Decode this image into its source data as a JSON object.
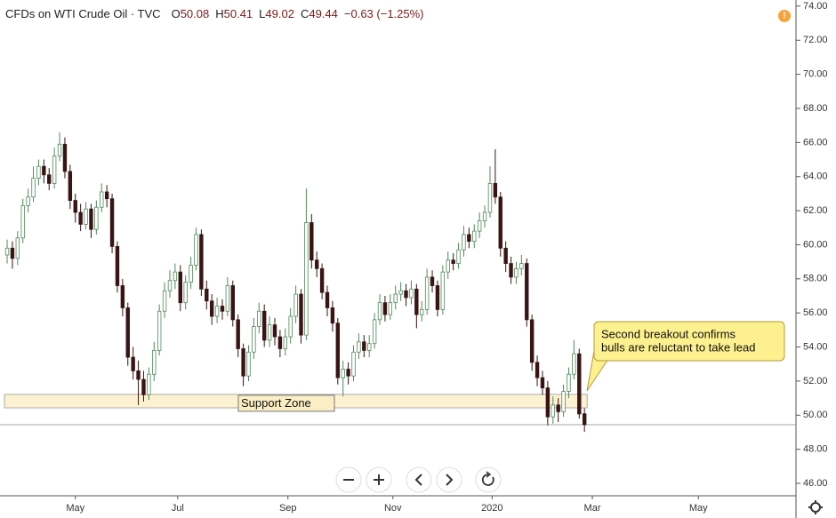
{
  "chart_data": {
    "type": "candlestick",
    "title": "CFDs on WTI Crude Oil · TVC",
    "ohlc_labels": [
      "O",
      "H",
      "L",
      "C"
    ],
    "change": "−0.63 (−1.25%)",
    "up_color": "#ffffff",
    "up_border": "#4f8a5b",
    "down_color": "#3a1414",
    "open": [
      59.4,
      59.8,
      59.2,
      60.4,
      62.3,
      62.8,
      63.9,
      64.6,
      64.1,
      63.6,
      65.2,
      65.9,
      64.3,
      62.6,
      61.9,
      61.2,
      62.1,
      60.9,
      62.2,
      63.1,
      62.7,
      59.9,
      57.6,
      56.3,
      53.4,
      52.6,
      52.1,
      51.2,
      52.4,
      53.8,
      56.1,
      57.3,
      57.9,
      58.4,
      56.6,
      57.8,
      58.8,
      60.6,
      57.4,
      56.7,
      55.8,
      56.4,
      56.1,
      57.6,
      55.6,
      53.9,
      52.3,
      53.7,
      55.2,
      56.1,
      54.4,
      55.3,
      54.6,
      53.9,
      54.6,
      55.8,
      57.1,
      54.7,
      61.3,
      59.1,
      58.6,
      57.2,
      56.3,
      55.4,
      52.2,
      52.7,
      52.3,
      53.7,
      54.3,
      53.8,
      54.2,
      55.6,
      56.6,
      55.9,
      56.6,
      57.1,
      57.3,
      56.9,
      57.4,
      55.9,
      56.2,
      58.1,
      57.6,
      56.2,
      58.4,
      59.1,
      58.9,
      59.7,
      60.6,
      60.2,
      60.8,
      61.4,
      61.9,
      63.6,
      62.8,
      59.8,
      58.9,
      58.1,
      58.6,
      58.9,
      55.6,
      53.1,
      52.2,
      51.6,
      49.9,
      50.6,
      50.2,
      51.4,
      52.4,
      53.6,
      50.08
    ],
    "high": [
      60.3,
      60.2,
      60.8,
      62.7,
      63.3,
      64.6,
      65.0,
      65.0,
      64.5,
      65.7,
      66.6,
      66.3,
      64.7,
      63.0,
      62.4,
      62.5,
      62.4,
      62.6,
      63.6,
      63.5,
      63.0,
      60.2,
      58.0,
      56.6,
      54.0,
      53.2,
      52.6,
      52.8,
      54.3,
      56.5,
      57.8,
      58.5,
      58.9,
      58.8,
      58.2,
      59.3,
      61.0,
      60.9,
      57.9,
      57.1,
      56.9,
      56.8,
      58.1,
      57.9,
      55.9,
      54.2,
      54.1,
      55.7,
      56.6,
      56.5,
      55.8,
      55.7,
      55.0,
      55.1,
      56.3,
      57.6,
      57.4,
      63.3,
      61.8,
      59.6,
      58.9,
      57.6,
      56.7,
      55.7,
      53.2,
      53.1,
      54.1,
      54.8,
      54.7,
      54.7,
      56.0,
      57.1,
      57.0,
      57.1,
      57.6,
      57.8,
      57.7,
      57.9,
      57.7,
      56.7,
      58.6,
      58.5,
      57.9,
      58.8,
      59.6,
      59.5,
      60.1,
      61.1,
      61.0,
      61.2,
      61.9,
      62.3,
      64.6,
      65.6,
      63.1,
      60.2,
      59.3,
      59.0,
      59.4,
      59.2,
      55.9,
      53.5,
      52.6,
      52.0,
      51.1,
      51.0,
      51.8,
      52.8,
      54.4,
      53.9,
      50.41
    ],
    "low": [
      58.9,
      58.6,
      58.8,
      60.1,
      61.9,
      62.5,
      63.5,
      63.6,
      63.2,
      63.3,
      64.9,
      63.9,
      62.1,
      61.3,
      60.8,
      60.9,
      60.4,
      60.6,
      61.9,
      62.2,
      59.5,
      57.2,
      55.8,
      52.9,
      52.1,
      50.6,
      50.8,
      50.9,
      52.0,
      53.5,
      55.7,
      56.9,
      57.4,
      56.1,
      56.2,
      57.4,
      58.5,
      57.0,
      56.2,
      55.3,
      55.4,
      55.6,
      55.8,
      55.2,
      53.4,
      51.7,
      52.0,
      53.3,
      54.8,
      54.0,
      54.0,
      54.1,
      53.4,
      53.5,
      54.2,
      55.4,
      54.2,
      54.4,
      58.6,
      58.1,
      56.8,
      55.8,
      54.9,
      51.8,
      51.1,
      51.8,
      52.0,
      53.3,
      53.4,
      53.4,
      53.9,
      55.3,
      55.5,
      55.6,
      56.2,
      56.7,
      56.4,
      56.5,
      55.1,
      55.5,
      55.9,
      57.2,
      55.8,
      55.9,
      58.0,
      58.5,
      58.6,
      59.3,
      59.8,
      59.8,
      60.4,
      61.0,
      61.6,
      62.4,
      59.3,
      58.4,
      57.7,
      57.7,
      58.2,
      55.2,
      52.6,
      51.7,
      51.2,
      49.4,
      49.5,
      49.6,
      49.9,
      51.0,
      52.1,
      49.8,
      49.02
    ],
    "close": [
      59.8,
      59.2,
      60.4,
      62.3,
      62.8,
      63.9,
      64.6,
      64.1,
      63.6,
      65.2,
      65.9,
      64.3,
      62.6,
      61.9,
      61.2,
      62.1,
      60.9,
      62.2,
      63.1,
      62.7,
      59.9,
      57.6,
      56.3,
      53.4,
      52.6,
      52.1,
      51.2,
      52.4,
      53.8,
      56.1,
      57.3,
      57.9,
      58.4,
      56.6,
      57.8,
      58.8,
      60.6,
      57.4,
      56.7,
      55.8,
      56.4,
      56.1,
      57.6,
      55.6,
      53.9,
      52.3,
      53.7,
      55.2,
      56.1,
      54.4,
      55.3,
      54.6,
      53.9,
      54.6,
      55.8,
      57.1,
      54.7,
      61.3,
      59.1,
      58.6,
      57.2,
      56.3,
      55.4,
      52.2,
      52.7,
      52.3,
      53.7,
      54.3,
      53.8,
      54.2,
      55.6,
      56.6,
      55.9,
      56.6,
      57.1,
      57.3,
      56.9,
      57.4,
      55.9,
      56.2,
      58.1,
      57.6,
      56.2,
      58.4,
      59.1,
      58.9,
      59.7,
      60.6,
      60.2,
      60.8,
      61.4,
      61.9,
      63.6,
      62.8,
      59.8,
      58.9,
      58.1,
      58.6,
      58.9,
      55.6,
      53.1,
      52.2,
      51.6,
      49.9,
      50.6,
      50.2,
      51.4,
      52.4,
      53.6,
      50.07,
      49.44
    ],
    "xlim": [
      -1.36,
      150.3
    ],
    "xticks": [
      {
        "value": 13,
        "label": "May"
      },
      {
        "value": 32.5,
        "label": "Jul"
      },
      {
        "value": 53.5,
        "label": "Sep"
      },
      {
        "value": 73.5,
        "label": "Nov"
      },
      {
        "value": 92.4,
        "label": "2020"
      },
      {
        "value": 111.5,
        "label": "Mar"
      },
      {
        "value": 131.7,
        "label": "May"
      }
    ],
    "ylim": [
      45.27,
      74.36
    ],
    "yticks": [
      {
        "value": 46,
        "label": "46.00"
      },
      {
        "value": 48,
        "label": "48.00"
      },
      {
        "value": 50,
        "label": "50.00"
      },
      {
        "value": 52,
        "label": "52.00"
      },
      {
        "value": 54,
        "label": "54.00"
      },
      {
        "value": 56,
        "label": "56.00"
      },
      {
        "value": 58,
        "label": "58.00"
      },
      {
        "value": 60,
        "label": "60.00"
      },
      {
        "value": 62,
        "label": "62.00"
      },
      {
        "value": 64,
        "label": "64.00"
      },
      {
        "value": 66,
        "label": "66.00"
      },
      {
        "value": 68,
        "label": "68.00"
      },
      {
        "value": 70,
        "label": "70.00"
      },
      {
        "value": 72,
        "label": "72.00"
      },
      {
        "value": 74,
        "label": "74.00"
      }
    ],
    "support_zone": [
      50.43,
      51.22
    ],
    "support_label": "Support Zone",
    "annotation_lines": [
      "Second breakout confirms",
      "bulls are reluctant to take lead"
    ]
  }
}
